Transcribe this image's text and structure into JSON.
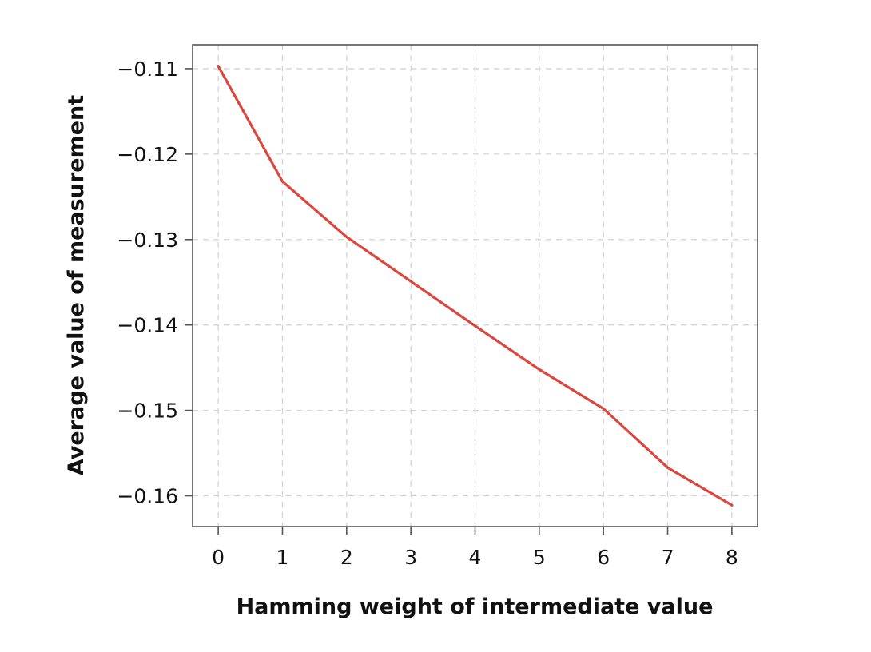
{
  "chart_data": {
    "type": "line",
    "title": "",
    "xlabel": "Hamming weight of intermediate value",
    "ylabel": "Average value of measurement",
    "x": [
      0,
      1,
      2,
      3,
      4,
      5,
      6,
      7,
      8
    ],
    "series": [
      {
        "values": [
          -0.1097,
          -0.1232,
          -0.1297,
          -0.1349,
          -0.1401,
          -0.1452,
          -0.1498,
          -0.1567,
          -0.1611
        ]
      }
    ],
    "xlim": [
      -0.4,
      8.4
    ],
    "ylim": [
      -0.1636,
      -0.1072
    ],
    "x_ticks": [
      0,
      1,
      2,
      3,
      4,
      5,
      6,
      7,
      8
    ],
    "x_tick_labels": [
      "0",
      "1",
      "2",
      "3",
      "4",
      "5",
      "6",
      "7",
      "8"
    ],
    "y_ticks": [
      -0.11,
      -0.12,
      -0.13,
      -0.14,
      -0.15,
      -0.16
    ],
    "y_tick_labels": [
      "−0.11",
      "−0.12",
      "−0.13",
      "−0.14",
      "−0.15",
      "−0.16"
    ],
    "grid": true,
    "legend": "none",
    "colors": {
      "line": "#d9473f",
      "grid": "#d4d4d4",
      "axes": "#555555"
    }
  }
}
